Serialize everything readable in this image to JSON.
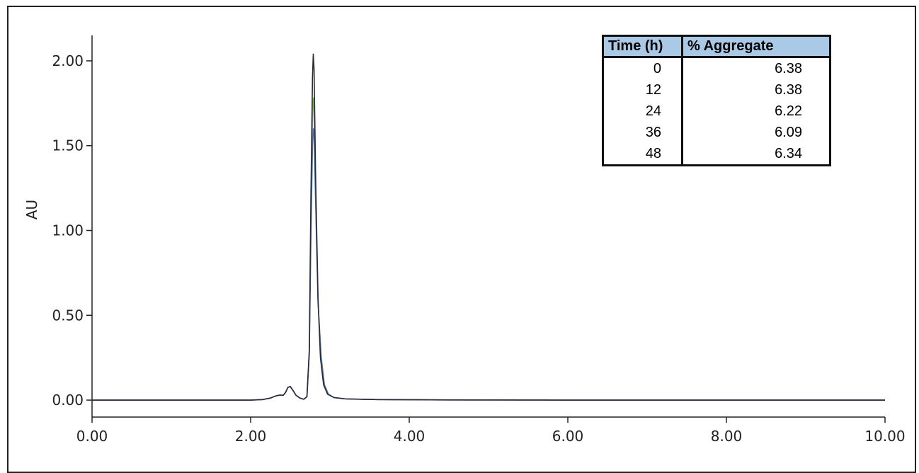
{
  "chart_data": {
    "type": "line",
    "title": "",
    "xlabel": "",
    "ylabel": "AU",
    "xlim": [
      0,
      10
    ],
    "ylim": [
      -0.1,
      2.15
    ],
    "x_ticks": [
      "0.00",
      "2.00",
      "4.00",
      "6.00",
      "8.00",
      "10.00"
    ],
    "y_ticks": [
      "0.00",
      "0.50",
      "1.00",
      "1.50",
      "2.00"
    ],
    "grid": false,
    "legend": "none",
    "series": [
      {
        "color": "#2a2a3a",
        "points": [
          [
            0,
            0
          ],
          [
            2.0,
            0
          ],
          [
            2.15,
            0.003
          ],
          [
            2.25,
            0.012
          ],
          [
            2.32,
            0.025
          ],
          [
            2.37,
            0.03
          ],
          [
            2.41,
            0.028
          ],
          [
            2.44,
            0.045
          ],
          [
            2.47,
            0.075
          ],
          [
            2.5,
            0.08
          ],
          [
            2.53,
            0.06
          ],
          [
            2.57,
            0.03
          ],
          [
            2.62,
            0.012
          ],
          [
            2.67,
            0.005
          ],
          [
            2.71,
            0.02
          ],
          [
            2.74,
            0.3
          ],
          [
            2.76,
            1.2
          ],
          [
            2.78,
            1.9
          ],
          [
            2.79,
            2.04
          ],
          [
            2.8,
            1.95
          ],
          [
            2.82,
            1.3
          ],
          [
            2.85,
            0.6
          ],
          [
            2.88,
            0.25
          ],
          [
            2.92,
            0.09
          ],
          [
            2.97,
            0.035
          ],
          [
            3.05,
            0.015
          ],
          [
            3.2,
            0.007
          ],
          [
            3.6,
            0.003
          ],
          [
            4.5,
            0.001
          ],
          [
            6,
            0
          ],
          [
            8,
            0
          ],
          [
            10,
            0
          ]
        ]
      },
      {
        "color": "#8ab84a",
        "points": [
          [
            0,
            0
          ],
          [
            2.0,
            0
          ],
          [
            2.15,
            0.003
          ],
          [
            2.25,
            0.012
          ],
          [
            2.32,
            0.025
          ],
          [
            2.37,
            0.03
          ],
          [
            2.41,
            0.028
          ],
          [
            2.44,
            0.045
          ],
          [
            2.47,
            0.075
          ],
          [
            2.5,
            0.08
          ],
          [
            2.53,
            0.06
          ],
          [
            2.57,
            0.03
          ],
          [
            2.62,
            0.012
          ],
          [
            2.67,
            0.005
          ],
          [
            2.71,
            0.02
          ],
          [
            2.74,
            0.28
          ],
          [
            2.76,
            1.05
          ],
          [
            2.78,
            1.65
          ],
          [
            2.79,
            1.78
          ],
          [
            2.8,
            1.72
          ],
          [
            2.82,
            1.2
          ],
          [
            2.85,
            0.58
          ],
          [
            2.89,
            0.25
          ],
          [
            2.93,
            0.09
          ],
          [
            2.98,
            0.035
          ],
          [
            3.05,
            0.015
          ],
          [
            3.2,
            0.007
          ],
          [
            3.6,
            0.003
          ],
          [
            4.5,
            0.001
          ],
          [
            6,
            0
          ],
          [
            8,
            0
          ],
          [
            10,
            0
          ]
        ]
      },
      {
        "color": "#4a6fa0",
        "points": [
          [
            0,
            0
          ],
          [
            2.0,
            0
          ],
          [
            2.15,
            0.003
          ],
          [
            2.25,
            0.012
          ],
          [
            2.32,
            0.025
          ],
          [
            2.37,
            0.03
          ],
          [
            2.41,
            0.028
          ],
          [
            2.44,
            0.045
          ],
          [
            2.47,
            0.075
          ],
          [
            2.5,
            0.08
          ],
          [
            2.53,
            0.06
          ],
          [
            2.57,
            0.03
          ],
          [
            2.62,
            0.012
          ],
          [
            2.67,
            0.005
          ],
          [
            2.71,
            0.02
          ],
          [
            2.74,
            0.27
          ],
          [
            2.76,
            0.95
          ],
          [
            2.78,
            1.5
          ],
          [
            2.79,
            1.6
          ],
          [
            2.8,
            1.56
          ],
          [
            2.82,
            1.15
          ],
          [
            2.85,
            0.57
          ],
          [
            2.89,
            0.25
          ],
          [
            2.93,
            0.09
          ],
          [
            2.98,
            0.035
          ],
          [
            3.05,
            0.015
          ],
          [
            3.2,
            0.007
          ],
          [
            3.6,
            0.003
          ],
          [
            4.5,
            0.001
          ],
          [
            6,
            0
          ],
          [
            8,
            0
          ],
          [
            10,
            0
          ]
        ]
      }
    ]
  },
  "table": {
    "headers": [
      "Time (h)",
      "% Aggregate"
    ],
    "rows": [
      [
        "0",
        "6.38"
      ],
      [
        "12",
        "6.38"
      ],
      [
        "24",
        "6.22"
      ],
      [
        "36",
        "6.09"
      ],
      [
        "48",
        "6.34"
      ]
    ]
  }
}
